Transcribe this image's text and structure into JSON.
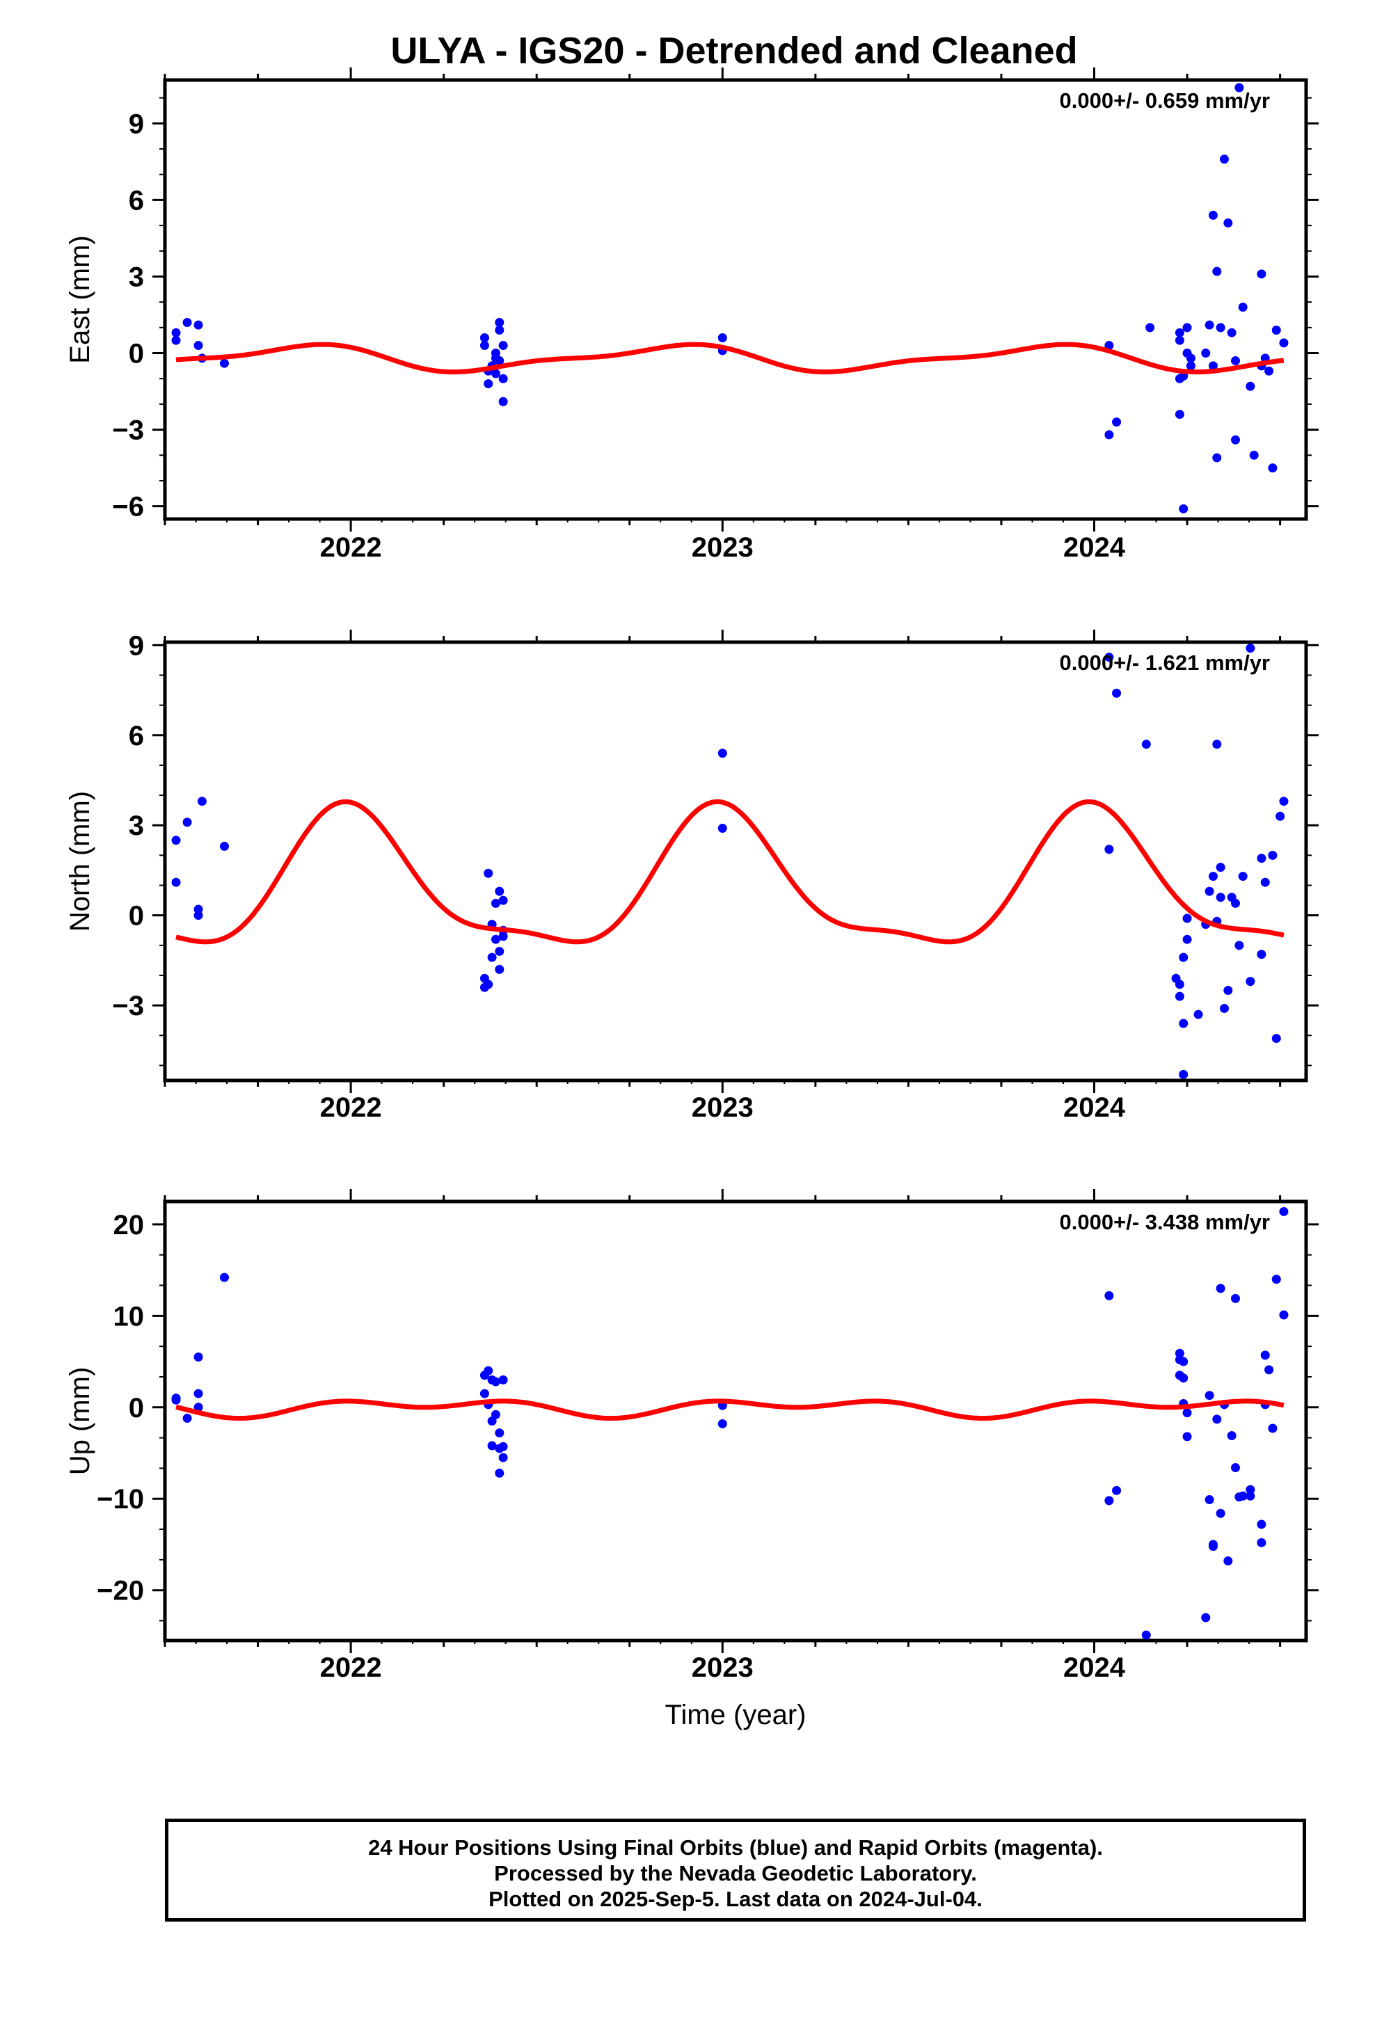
{
  "title": "ULYA - IGS20 - Detrended and Cleaned",
  "footer": {
    "line1": "24 Hour Positions Using Final Orbits (blue) and Rapid Orbits (magenta).",
    "line2": "Processed by the Nevada Geodetic Laboratory.",
    "line3": "Plotted on 2025-Sep-5. Last data on 2024-Jul-04."
  },
  "colors": {
    "points": "#0000ff",
    "model": "#ff0000",
    "frame": "#000000"
  },
  "chart_data": [
    {
      "type": "scatter",
      "ylabel": "East (mm)",
      "xlabel": "",
      "rate_label": "0.000+/- 0.659 mm/yr",
      "xlim": [
        2021.5,
        2024.57
      ],
      "ylim": [
        -6.5,
        10.7
      ],
      "xticks": [
        2022,
        2023,
        2024
      ],
      "yticks": [
        9,
        6,
        3,
        0,
        -3,
        -6
      ],
      "ytick_labels": [
        "9",
        "6",
        "3",
        "0",
        "−3",
        "−6"
      ],
      "series": [
        {
          "kind": "points",
          "points": [
            [
              2021.53,
              0.8
            ],
            [
              2021.53,
              0.5
            ],
            [
              2021.56,
              1.2
            ],
            [
              2021.59,
              1.1
            ],
            [
              2021.59,
              0.3
            ],
            [
              2021.6,
              -0.2
            ],
            [
              2021.66,
              -0.4
            ],
            [
              2022.36,
              0.6
            ],
            [
              2022.36,
              0.3
            ],
            [
              2022.37,
              -0.7
            ],
            [
              2022.37,
              -1.2
            ],
            [
              2022.38,
              -0.5
            ],
            [
              2022.39,
              -0.2
            ],
            [
              2022.39,
              -0.8
            ],
            [
              2022.39,
              0.0
            ],
            [
              2022.4,
              0.9
            ],
            [
              2022.4,
              1.2
            ],
            [
              2022.4,
              -0.3
            ],
            [
              2022.41,
              0.3
            ],
            [
              2022.41,
              -1.0
            ],
            [
              2022.41,
              -1.9
            ],
            [
              2023.0,
              0.6
            ],
            [
              2023.0,
              0.1
            ],
            [
              2024.04,
              0.3
            ],
            [
              2024.04,
              -3.2
            ],
            [
              2024.06,
              -2.7
            ],
            [
              2024.15,
              1.0
            ],
            [
              2024.23,
              0.8
            ],
            [
              2024.23,
              0.5
            ],
            [
              2024.23,
              -1.0
            ],
            [
              2024.23,
              -2.4
            ],
            [
              2024.24,
              -0.9
            ],
            [
              2024.24,
              -6.1
            ],
            [
              2024.25,
              1.0
            ],
            [
              2024.25,
              0.0
            ],
            [
              2024.26,
              -0.2
            ],
            [
              2024.26,
              -0.5
            ],
            [
              2024.3,
              0.0
            ],
            [
              2024.31,
              1.1
            ],
            [
              2024.32,
              -0.5
            ],
            [
              2024.32,
              5.4
            ],
            [
              2024.33,
              -4.1
            ],
            [
              2024.33,
              3.2
            ],
            [
              2024.34,
              1.0
            ],
            [
              2024.35,
              7.6
            ],
            [
              2024.36,
              5.1
            ],
            [
              2024.37,
              0.8
            ],
            [
              2024.38,
              -0.3
            ],
            [
              2024.38,
              -3.4
            ],
            [
              2024.39,
              10.4
            ],
            [
              2024.4,
              1.8
            ],
            [
              2024.42,
              -1.3
            ],
            [
              2024.43,
              -4.0
            ],
            [
              2024.45,
              -0.5
            ],
            [
              2024.45,
              3.1
            ],
            [
              2024.46,
              -0.2
            ],
            [
              2024.47,
              -0.7
            ],
            [
              2024.48,
              -4.5
            ],
            [
              2024.49,
              0.9
            ],
            [
              2024.51,
              0.4
            ]
          ]
        },
        {
          "kind": "model",
          "mean": -0.2,
          "components": [
            [
              0.45,
              0.85
            ],
            [
              0.17,
              0.95
            ]
          ]
        }
      ]
    },
    {
      "type": "scatter",
      "ylabel": "North (mm)",
      "xlabel": "",
      "rate_label": "0.000+/- 1.621 mm/yr",
      "xlim": [
        2021.5,
        2024.57
      ],
      "ylim": [
        -5.5,
        9.1
      ],
      "xticks": [
        2022,
        2023,
        2024
      ],
      "yticks": [
        9,
        6,
        3,
        0,
        -3
      ],
      "ytick_labels": [
        "9",
        "6",
        "3",
        "0",
        "−3"
      ],
      "series": [
        {
          "kind": "points",
          "points": [
            [
              2021.53,
              2.5
            ],
            [
              2021.53,
              1.1
            ],
            [
              2021.56,
              3.1
            ],
            [
              2021.6,
              3.8
            ],
            [
              2021.59,
              0.2
            ],
            [
              2021.59,
              0.0
            ],
            [
              2021.66,
              2.3
            ],
            [
              2022.36,
              -2.4
            ],
            [
              2022.36,
              -2.1
            ],
            [
              2022.37,
              -2.3
            ],
            [
              2022.37,
              1.4
            ],
            [
              2022.38,
              -0.3
            ],
            [
              2022.38,
              -1.4
            ],
            [
              2022.39,
              0.4
            ],
            [
              2022.39,
              -0.8
            ],
            [
              2022.4,
              0.8
            ],
            [
              2022.4,
              -1.2
            ],
            [
              2022.4,
              -1.8
            ],
            [
              2022.41,
              0.5
            ],
            [
              2022.41,
              -0.5
            ],
            [
              2022.41,
              -0.7
            ],
            [
              2023.0,
              5.4
            ],
            [
              2023.0,
              2.9
            ],
            [
              2024.04,
              8.6
            ],
            [
              2024.04,
              2.2
            ],
            [
              2024.06,
              7.4
            ],
            [
              2024.14,
              5.7
            ],
            [
              2024.22,
              -2.1
            ],
            [
              2024.23,
              -2.3
            ],
            [
              2024.23,
              -2.7
            ],
            [
              2024.24,
              -1.4
            ],
            [
              2024.24,
              -3.6
            ],
            [
              2024.24,
              -5.3
            ],
            [
              2024.25,
              -0.1
            ],
            [
              2024.25,
              -0.8
            ],
            [
              2024.28,
              -3.3
            ],
            [
              2024.3,
              -0.3
            ],
            [
              2024.31,
              0.8
            ],
            [
              2024.32,
              1.3
            ],
            [
              2024.33,
              5.7
            ],
            [
              2024.33,
              -0.2
            ],
            [
              2024.34,
              1.6
            ],
            [
              2024.34,
              0.6
            ],
            [
              2024.35,
              -3.1
            ],
            [
              2024.36,
              -2.5
            ],
            [
              2024.37,
              0.6
            ],
            [
              2024.38,
              0.4
            ],
            [
              2024.39,
              -1.0
            ],
            [
              2024.4,
              1.3
            ],
            [
              2024.42,
              8.9
            ],
            [
              2024.42,
              -2.2
            ],
            [
              2024.45,
              1.9
            ],
            [
              2024.45,
              -1.3
            ],
            [
              2024.46,
              1.1
            ],
            [
              2024.48,
              2.0
            ],
            [
              2024.49,
              -4.1
            ],
            [
              2024.5,
              3.3
            ],
            [
              2024.51,
              3.8
            ]
          ]
        },
        {
          "kind": "model",
          "mean": 0.9,
          "components": [
            [
              2.2,
              0.0
            ],
            [
              0.7,
              0.95
            ]
          ]
        }
      ]
    },
    {
      "type": "scatter",
      "ylabel": "Up (mm)",
      "xlabel": "Time (year)",
      "rate_label": "0.000+/- 3.438 mm/yr",
      "xlim": [
        2021.5,
        2024.57
      ],
      "ylim": [
        -25.5,
        22.5
      ],
      "xticks": [
        2022,
        2023,
        2024
      ],
      "yticks": [
        20,
        10,
        0,
        -10,
        -20
      ],
      "ytick_labels": [
        "20",
        "10",
        "0",
        "−10",
        "−20"
      ],
      "series": [
        {
          "kind": "points",
          "points": [
            [
              2021.53,
              1.0
            ],
            [
              2021.53,
              0.8
            ],
            [
              2021.56,
              -1.2
            ],
            [
              2021.59,
              5.5
            ],
            [
              2021.59,
              1.5
            ],
            [
              2021.59,
              0.0
            ],
            [
              2021.66,
              14.2
            ],
            [
              2022.36,
              1.5
            ],
            [
              2022.36,
              3.5
            ],
            [
              2022.37,
              4.0
            ],
            [
              2022.37,
              0.3
            ],
            [
              2022.38,
              3.0
            ],
            [
              2022.38,
              -1.5
            ],
            [
              2022.38,
              -4.2
            ],
            [
              2022.39,
              2.8
            ],
            [
              2022.39,
              -0.8
            ],
            [
              2022.4,
              -2.8
            ],
            [
              2022.4,
              -4.5
            ],
            [
              2022.4,
              -7.2
            ],
            [
              2022.41,
              3.0
            ],
            [
              2022.41,
              -5.5
            ],
            [
              2022.41,
              -4.3
            ],
            [
              2023.0,
              0.2
            ],
            [
              2023.0,
              -1.8
            ],
            [
              2024.04,
              12.2
            ],
            [
              2024.04,
              -10.2
            ],
            [
              2024.06,
              -9.1
            ],
            [
              2024.14,
              -24.9
            ],
            [
              2024.23,
              5.2
            ],
            [
              2024.23,
              3.5
            ],
            [
              2024.23,
              5.9
            ],
            [
              2024.24,
              3.2
            ],
            [
              2024.24,
              5.0
            ],
            [
              2024.24,
              0.4
            ],
            [
              2024.25,
              -3.2
            ],
            [
              2024.25,
              -0.6
            ],
            [
              2024.3,
              -23.0
            ],
            [
              2024.31,
              1.3
            ],
            [
              2024.31,
              -10.1
            ],
            [
              2024.32,
              -15.0
            ],
            [
              2024.32,
              -15.2
            ],
            [
              2024.33,
              -1.3
            ],
            [
              2024.34,
              -11.6
            ],
            [
              2024.34,
              13.0
            ],
            [
              2024.35,
              0.3
            ],
            [
              2024.36,
              -16.8
            ],
            [
              2024.37,
              -3.1
            ],
            [
              2024.38,
              -6.6
            ],
            [
              2024.38,
              11.9
            ],
            [
              2024.39,
              -9.8
            ],
            [
              2024.4,
              -9.7
            ],
            [
              2024.42,
              -9.0
            ],
            [
              2024.42,
              -9.7
            ],
            [
              2024.45,
              -12.8
            ],
            [
              2024.45,
              -14.8
            ],
            [
              2024.46,
              0.3
            ],
            [
              2024.46,
              5.7
            ],
            [
              2024.47,
              4.1
            ],
            [
              2024.48,
              -2.3
            ],
            [
              2024.49,
              14.0
            ],
            [
              2024.51,
              10.1
            ],
            [
              2024.51,
              21.4
            ]
          ]
        },
        {
          "kind": "model",
          "mean": 0.0,
          "components": [
            [
              0.6,
              0.2
            ],
            [
              0.6,
              0.9
            ]
          ]
        }
      ]
    }
  ]
}
